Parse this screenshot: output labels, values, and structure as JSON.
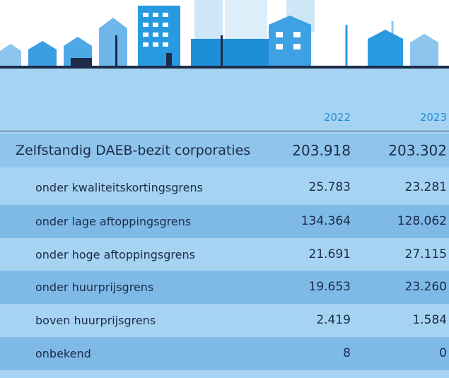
{
  "table": {
    "columns": [
      "2022",
      "2023"
    ],
    "rows": [
      [
        "Zelfstandig DAEB-bezit corporaties",
        "203.918",
        "203.302"
      ],
      [
        "onder kwaliteitskortingsgrens",
        "25.783",
        "23.281"
      ],
      [
        "onder lage aftoppingsgrens",
        "134.364",
        "128.062"
      ],
      [
        "onder hoge aftoppingsgrens",
        "21.691",
        "27.115"
      ],
      [
        "onder huurprijsgrens",
        "19.653",
        "23.260"
      ],
      [
        "boven huurprijsgrens",
        "2.419",
        "1.584"
      ],
      [
        "onbekend",
        "8",
        "0"
      ]
    ]
  }
}
